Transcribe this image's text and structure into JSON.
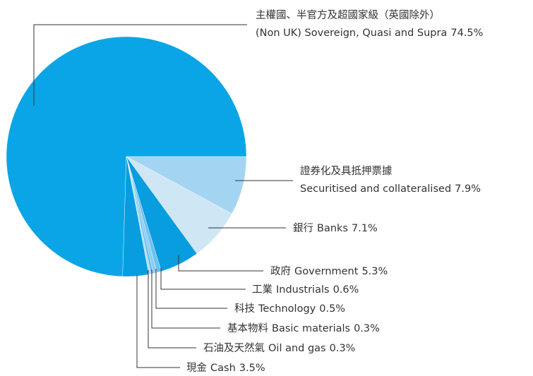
{
  "chart_data": {
    "type": "pie",
    "categories_zh": [
      "主權國、半官方及超國家級（英國除外）",
      "證券化及具抵押票據",
      "銀行",
      "政府",
      "工業",
      "科技",
      "基本物料",
      "石油及天然氣",
      "現金"
    ],
    "categories": [
      "(Non UK) Sovereign, Quasi and Supra",
      "Securitised and collateralised",
      "Banks",
      "Government",
      "Industrials",
      "Technology",
      "Basic materials",
      "Oil and gas",
      "Cash"
    ],
    "values": [
      74.5,
      7.9,
      7.1,
      5.3,
      0.6,
      0.5,
      0.3,
      0.3,
      3.5
    ],
    "value_labels": [
      "74.5%",
      "7.9%",
      "7.1%",
      "5.3%",
      "0.6%",
      "0.5%",
      "0.3%",
      "0.3%",
      "3.5%"
    ],
    "colors": [
      "#0aa5e6",
      "#a3d5f3",
      "#cfe6f5",
      "#079ddf",
      "#6cc1ee",
      "#8ccdf1",
      "#56b8ea",
      "#b5dcf5",
      "#079ddf"
    ]
  }
}
